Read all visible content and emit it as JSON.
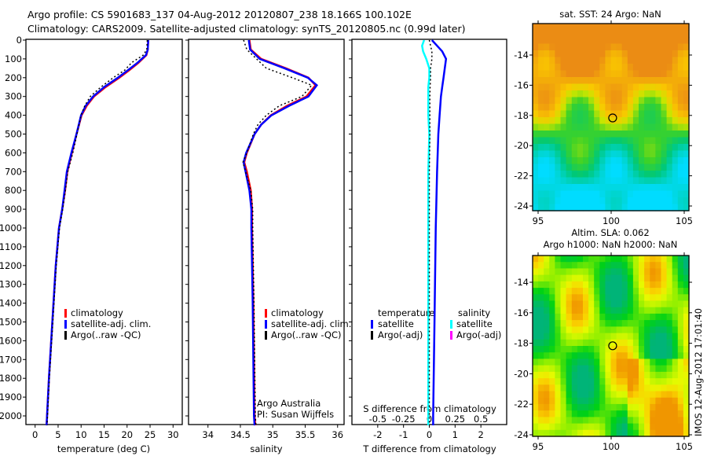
{
  "title_line1": "Argo profile: CS 5901683_137 04-Aug-2012 20120807_238 18.166S 100.102E",
  "title_line2": "Climatology: CARS2009. Satellite-adjusted climatology: synTS_20120805.nc (0.99d later)",
  "colors": {
    "climatology": "#ff0000",
    "satellite": "#0000ff",
    "argo": "#000000",
    "sal_satellite": "#00ffff",
    "sal_argo": "#ff00ff"
  },
  "chart_data": [
    {
      "type": "line",
      "title": "",
      "xlabel": "temperature (deg C)",
      "ylabel": "",
      "xlim": [
        -2,
        32
      ],
      "ylim": [
        2060,
        0
      ],
      "xticks": [
        "0",
        "5",
        "10",
        "15",
        "20",
        "25",
        "30"
      ],
      "xtick_values": [
        0,
        5,
        10,
        15,
        20,
        25,
        30
      ],
      "yticks": [
        "0",
        "100",
        "200",
        "300",
        "400",
        "500",
        "600",
        "700",
        "800",
        "900",
        "1000",
        "1100",
        "1200",
        "1300",
        "1400",
        "1500",
        "1600",
        "1700",
        "1800",
        "1900",
        "2000"
      ],
      "depth": [
        0,
        50,
        80,
        120,
        160,
        200,
        250,
        300,
        350,
        400,
        500,
        600,
        700,
        800,
        900,
        1000,
        1200,
        1400,
        1600,
        1800,
        2000,
        2050
      ],
      "series": [
        {
          "name": "climatology",
          "color": "#ff0000",
          "values": [
            24.6,
            24.5,
            24.2,
            22.5,
            20.5,
            18.3,
            15.3,
            12.8,
            11.2,
            10.1,
            9.0,
            8.0,
            7.0,
            6.5,
            5.9,
            5.2,
            4.5,
            4.0,
            3.5,
            3.0,
            2.6,
            2.5
          ]
        },
        {
          "name": "satellite-adj. clim.",
          "color": "#0000ff",
          "values": [
            24.6,
            24.5,
            24.1,
            22.3,
            20.2,
            18.0,
            15.0,
            12.6,
            11.0,
            10.0,
            9.0,
            7.9,
            6.9,
            6.4,
            5.9,
            5.2,
            4.5,
            4.0,
            3.5,
            3.0,
            2.6,
            2.5
          ]
        },
        {
          "name": "Argo(..raw -QC)",
          "color": "#000000",
          "dashed": true,
          "values": [
            24.4,
            24.3,
            23.5,
            21.0,
            19.5,
            17.0,
            14.3,
            12.0,
            10.8,
            10.0,
            9.1,
            8.2,
            7.1,
            6.6,
            6.0,
            5.3,
            4.6,
            4.1,
            3.6,
            3.1,
            2.7,
            2.6
          ]
        }
      ]
    },
    {
      "type": "line",
      "xlabel": "salinity",
      "xlim": [
        33.7,
        36.1
      ],
      "ylim": [
        2060,
        0
      ],
      "xticks": [
        "34",
        "34.5",
        "35",
        "35.5",
        "36"
      ],
      "xtick_values": [
        34,
        34.5,
        35,
        35.5,
        36
      ],
      "depth": [
        0,
        50,
        100,
        150,
        200,
        240,
        300,
        350,
        400,
        450,
        500,
        600,
        650,
        700,
        800,
        900,
        1000,
        1400,
        2000,
        2050
      ],
      "series": [
        {
          "name": "climatology",
          "color": "#ff0000",
          "values": [
            34.64,
            34.66,
            34.82,
            35.2,
            35.55,
            35.66,
            35.52,
            35.22,
            34.97,
            34.82,
            34.72,
            34.6,
            34.56,
            34.6,
            34.66,
            34.68,
            34.68,
            34.7,
            34.72,
            34.73
          ]
        },
        {
          "name": "satellite-adj. clim.",
          "color": "#0000ff",
          "values": [
            34.63,
            34.65,
            34.8,
            35.18,
            35.54,
            35.68,
            35.55,
            35.25,
            34.98,
            34.82,
            34.72,
            34.59,
            34.55,
            34.58,
            34.64,
            34.67,
            34.67,
            34.69,
            34.71,
            34.72
          ]
        },
        {
          "name": "Argo(..raw -QC)",
          "color": "#000000",
          "dashed": true,
          "values": [
            34.55,
            34.6,
            34.75,
            34.9,
            35.3,
            35.6,
            35.45,
            35.1,
            34.9,
            34.77,
            34.7,
            34.6,
            34.54,
            34.58,
            34.66,
            34.69,
            34.69,
            34.71,
            34.73,
            34.74
          ]
        }
      ],
      "annotation": [
        "Argo Australia",
        "PI: Susan Wijffels"
      ]
    },
    {
      "type": "line",
      "xlabel": "T difference from climatology",
      "x2label": "S difference from climatology",
      "xlim": [
        -3,
        3
      ],
      "x2lim": [
        -0.75,
        0.75
      ],
      "ylim": [
        2060,
        0
      ],
      "xticks": [
        "-2",
        "-1",
        "0",
        "1",
        "2"
      ],
      "xtick_values": [
        -2,
        -1,
        0,
        1,
        2
      ],
      "x2ticks": [
        "-0.5",
        "-0.25",
        "0",
        "0.25",
        "0.5"
      ],
      "x2tick_values": [
        -0.5,
        -0.25,
        0,
        0.25,
        0.5
      ],
      "depth": [
        0,
        30,
        60,
        100,
        150,
        200,
        250,
        300,
        400,
        500,
        700,
        1000,
        1500,
        2000,
        2050
      ],
      "series": [
        {
          "name": "temperature satellite",
          "color": "#0000ff",
          "axis": "T",
          "values": [
            0.1,
            0.3,
            0.5,
            0.65,
            0.6,
            0.55,
            0.5,
            0.45,
            0.4,
            0.35,
            0.3,
            0.25,
            0.2,
            0.15,
            0.15
          ]
        },
        {
          "name": "salinity satellite",
          "color": "#00ffff",
          "axis": "S",
          "values": [
            -0.05,
            -0.07,
            -0.06,
            -0.03,
            0.0,
            0.0,
            -0.01,
            -0.01,
            -0.01,
            0.0,
            -0.01,
            -0.01,
            -0.01,
            -0.01,
            -0.01
          ]
        },
        {
          "name": "temperature Argo(-adj)",
          "color": "#000000",
          "axis": "T",
          "dashed": true,
          "values": [
            0.0,
            0.05,
            0.1,
            0.1,
            0.05,
            0.05,
            0.03,
            0.02,
            0.02,
            0.02,
            0.0,
            0.0,
            0.0,
            0.0,
            0.0
          ]
        }
      ],
      "legend": {
        "t_heading": "temperature",
        "s_heading": "salinity",
        "satellite": "satellite",
        "argo": "Argo(-adj)"
      }
    }
  ],
  "map1": {
    "title": "sat. SST: 24 Argo: NaN",
    "xticks": [
      "95",
      "100",
      "105"
    ],
    "yticks": [
      "-14",
      "-16",
      "-18",
      "-20",
      "-22",
      "-24"
    ],
    "marker": [
      100.102,
      -18.166
    ]
  },
  "map2": {
    "title1": "Altim. SLA: 0.062",
    "title2": "Argo h1000: NaN h2000: NaN",
    "xticks": [
      "95",
      "100",
      "105"
    ],
    "yticks": [
      "-14",
      "-16",
      "-18",
      "-20",
      "-22",
      "-24"
    ],
    "marker": [
      100.102,
      -18.166
    ]
  },
  "legend1": [
    "climatology",
    "satellite-adj. clim.",
    "Argo(..raw -QC)"
  ],
  "stamp": "IMOS 12-Aug-2012 17:01:40"
}
